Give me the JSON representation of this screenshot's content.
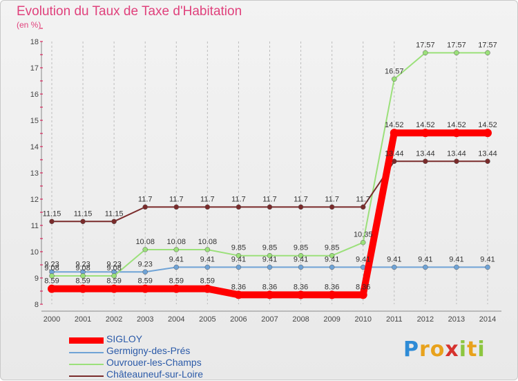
{
  "chart_data": {
    "type": "line",
    "title": "Evolution du Taux de Taxe d'Habitation",
    "subtitle": "(en %)",
    "x": [
      "2000",
      "2001",
      "2002",
      "2003",
      "2004",
      "2005",
      "2006",
      "2007",
      "2008",
      "2009",
      "2010",
      "2011",
      "2012",
      "2013",
      "2014"
    ],
    "ylim": [
      8,
      18
    ],
    "yticks": [
      8,
      9,
      10,
      11,
      12,
      13,
      14,
      15,
      16,
      17,
      18
    ],
    "grid": "vertical dashed",
    "legend": "bottom-left",
    "series": [
      {
        "name": "SIGLOY",
        "color": "#ff0000",
        "highlight": true,
        "values": [
          8.59,
          8.59,
          8.59,
          8.59,
          8.59,
          8.59,
          8.36,
          8.36,
          8.36,
          8.36,
          8.36,
          14.52,
          14.52,
          14.52,
          14.52
        ]
      },
      {
        "name": "Germigny-des-Prés",
        "color": "#6fa3d6",
        "values": [
          9.23,
          9.23,
          9.23,
          9.23,
          9.41,
          9.41,
          9.41,
          9.41,
          9.41,
          9.41,
          9.41,
          9.41,
          9.41,
          9.41,
          9.41
        ]
      },
      {
        "name": "Ouvrouer-les-Champs",
        "color": "#9be07a",
        "values": [
          9.08,
          9.08,
          9.08,
          10.08,
          10.08,
          10.08,
          9.85,
          9.85,
          9.85,
          9.85,
          10.35,
          16.57,
          17.57,
          17.57,
          17.57
        ]
      },
      {
        "name": "Châteauneuf-sur-Loire",
        "color": "#7a2b2b",
        "values": [
          11.15,
          11.15,
          11.15,
          11.7,
          11.7,
          11.7,
          11.7,
          11.7,
          11.7,
          11.7,
          11.7,
          13.44,
          13.44,
          13.44,
          13.44
        ]
      }
    ]
  },
  "brand": {
    "letters": [
      "P",
      "r",
      "o",
      "x",
      "i",
      "t",
      "i"
    ],
    "colors": [
      "#2e8bd6",
      "#e8a21c",
      "#e8a21c",
      "#d6322e",
      "#8cc63f",
      "#e8a21c",
      "#8cc63f"
    ]
  }
}
